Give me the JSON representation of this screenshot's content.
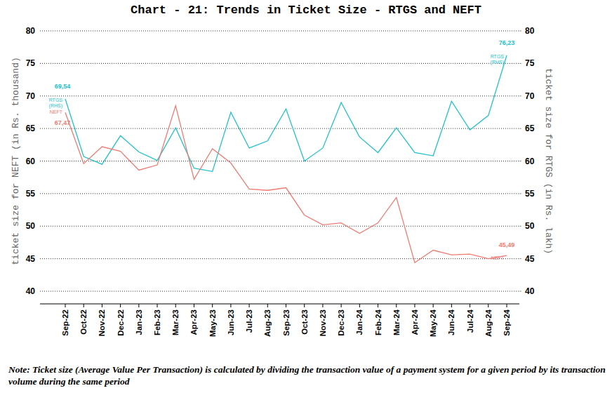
{
  "chart_data": {
    "type": "line",
    "title": "Chart - 21: Trends in Ticket Size - RTGS and NEFT",
    "ylabel": "ticket size for NEFT (in Rs. thousand)",
    "y2label": "ticket size for RTGS (in Rs. lakh)",
    "note": "Note: Ticket size (Average Value Per Transaction) is calculated by dividing the transaction value of a payment system for a given period by its transaction volume during the same period",
    "categories": [
      "Sep-22",
      "Oct-22",
      "Nov-22",
      "Dec-22",
      "Jan-23",
      "Feb-23",
      "Mar-23",
      "Apr-23",
      "May-23",
      "Jun-23",
      "Jul-23",
      "Aug-23",
      "Sep-23",
      "Oct-23",
      "Nov-23",
      "Dec-23",
      "Jan-24",
      "Feb-24",
      "Mar-24",
      "Apr-24",
      "May-24",
      "Jun-24",
      "Jul-24",
      "Aug-24",
      "Sep-24"
    ],
    "ylim": [
      40,
      80
    ],
    "yticks": [
      40,
      45,
      50,
      55,
      60,
      65,
      70,
      75,
      80
    ],
    "y2lim": [
      40,
      80
    ],
    "y2ticks": [
      40,
      45,
      50,
      55,
      60,
      65,
      70,
      75,
      80
    ],
    "grid": true,
    "data_labels": true,
    "series": [
      {
        "name": "RTGS (RHS)",
        "axis": "y2",
        "color": "#22c1cc",
        "line_style": "solid",
        "values": [
          69.54,
          60.7,
          59.5,
          63.9,
          61.4,
          60.1,
          65.1,
          58.9,
          58.4,
          67.5,
          62.0,
          63.1,
          68.0,
          60.0,
          62.0,
          69.0,
          63.7,
          61.3,
          65.1,
          61.3,
          60.8,
          69.2,
          64.8,
          67.0,
          76.23
        ],
        "value_labels": [
          "69,54",
          null,
          null,
          null,
          null,
          null,
          null,
          null,
          null,
          null,
          null,
          null,
          null,
          null,
          null,
          null,
          null,
          null,
          null,
          null,
          null,
          null,
          null,
          null,
          "76,23"
        ]
      },
      {
        "name": "NEFT",
        "color": "#f07b72",
        "line_style": "solid",
        "values": [
          67.47,
          59.6,
          62.2,
          61.5,
          58.6,
          59.4,
          68.5,
          57.2,
          61.9,
          59.7,
          55.7,
          55.5,
          55.9,
          51.7,
          50.2,
          50.5,
          48.9,
          50.5,
          54.4,
          44.4,
          46.3,
          45.6,
          45.7,
          45.0,
          45.49
        ],
        "value_labels": [
          "67,47",
          null,
          null,
          null,
          null,
          null,
          null,
          null,
          null,
          null,
          null,
          null,
          null,
          null,
          null,
          null,
          null,
          null,
          null,
          null,
          null,
          null,
          null,
          null,
          "45,49"
        ]
      }
    ]
  }
}
